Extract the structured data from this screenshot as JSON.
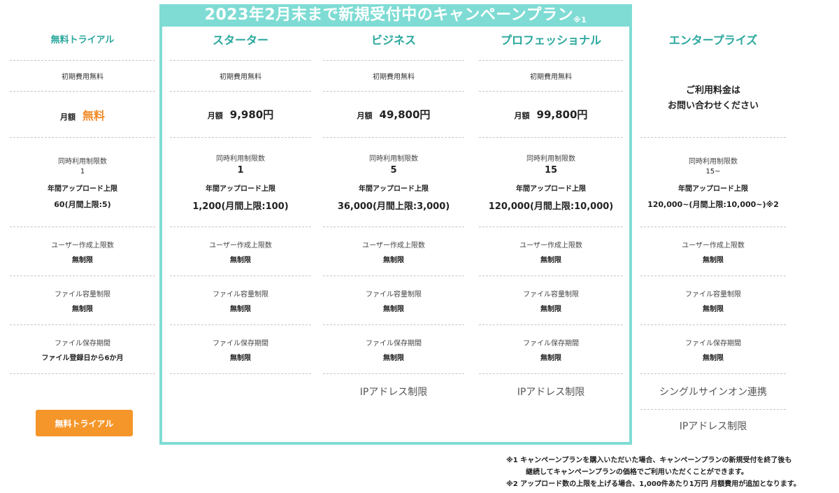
{
  "campaign": {
    "title": "2023年2月末まで新規受付中のキャンペーンプラン",
    "mark": "※1"
  },
  "labels": {
    "initial_fee": "初期費用無料",
    "monthly": "月額",
    "concurrent": "同時利用制限数",
    "annual_upload": "年間アップロード上限",
    "users": "ユーザー作成上限数",
    "file_capacity": "ファイル容量制限",
    "file_retention": "ファイル保存期間"
  },
  "plans": {
    "trial": {
      "name": "無料トライアル",
      "price": "無料",
      "concurrent": "1",
      "upload": "60(月間上限:5)",
      "users": "無制限",
      "capacity": "無制限",
      "retention": "ファイル登録日から6か月",
      "button": "無料トライアル"
    },
    "starter": {
      "name": "スターター",
      "price": "9,980円",
      "concurrent": "1",
      "upload": "1,200(月間上限:100)",
      "users": "無制限",
      "capacity": "無制限",
      "retention": "無制限"
    },
    "business": {
      "name": "ビジネス",
      "price": "49,800円",
      "concurrent": "5",
      "upload": "36,000(月間上限:3,000)",
      "users": "無制限",
      "capacity": "無制限",
      "retention": "無制限",
      "extra": "IPアドレス制限"
    },
    "professional": {
      "name": "プロフェッショナル",
      "price": "99,800円",
      "concurrent": "15",
      "upload": "120,000(月間上限:10,000)",
      "users": "無制限",
      "capacity": "無制限",
      "retention": "無制限",
      "extra": "IPアドレス制限"
    },
    "enterprise": {
      "name": "エンタープライズ",
      "price_line1": "ご利用料金は",
      "price_line2": "お問い合わせください",
      "concurrent": "15~",
      "upload": "120,000~(月間上限:10,000~)※2",
      "users": "無制限",
      "capacity": "無制限",
      "retention": "無制限",
      "extra1": "シングルサインオン連携",
      "extra2": "IPアドレス制限"
    }
  },
  "notes": {
    "n1_line1": "※1 キャンペーンプランを購入いただいた場合、キャンペーンプランの新規受付を終了後も",
    "n1_line2": "継続してキャンペーンプランの価格でご利用いただくことができます。",
    "n2": "※2 アップロード数の上限を上げる場合、1,000件あたり1万円 月額費用が追加となります。"
  },
  "colors": {
    "accent": "#7fdcd4",
    "title": "#2aa79d",
    "orange": "#f5962a"
  }
}
